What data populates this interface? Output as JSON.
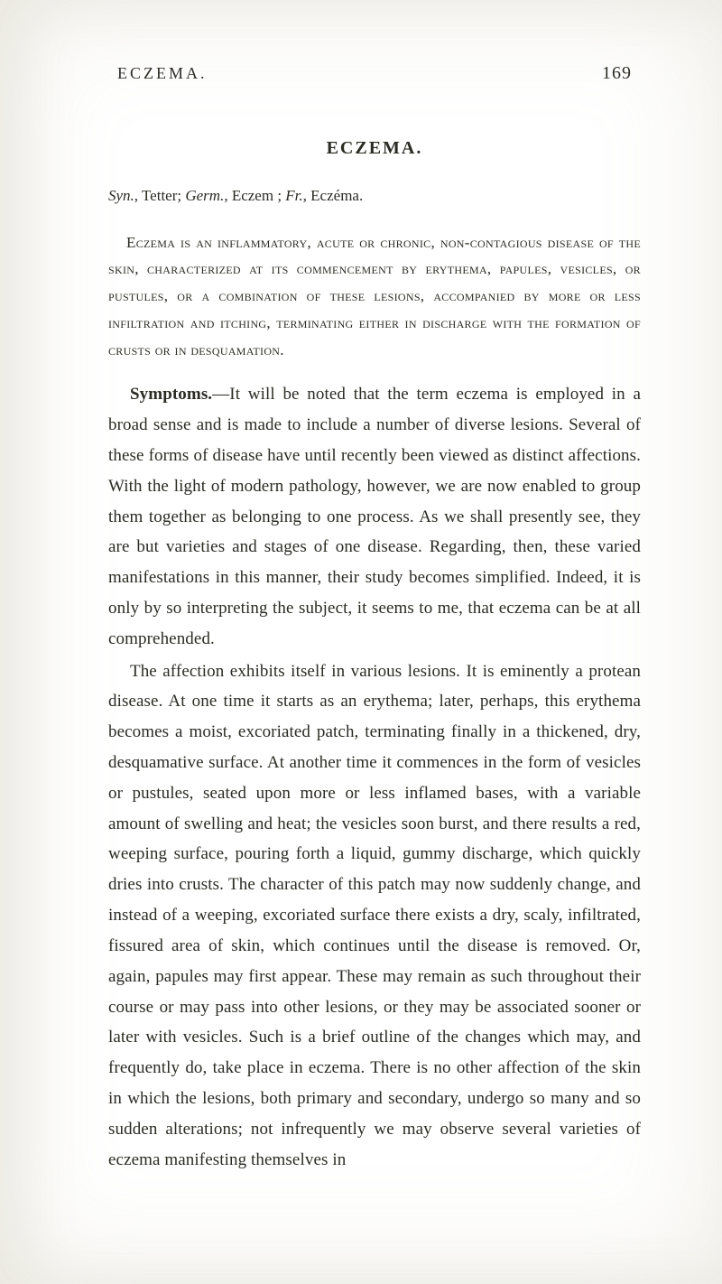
{
  "page": {
    "running_head": "ECZEMA.",
    "page_number": "169",
    "title": "ECZEMA.",
    "syn": {
      "prefix": "Syn.",
      "html": ", Tetter; <i>Germ.</i>, Eczem ; <i>Fr.</i>, Eczéma."
    },
    "definition_html": "<span class='lead'>E</span>czema is an inflammatory, acute or chronic, non-contagious disease of the skin, characterized at its commencement by erythema, papules, vesicles, or pustules, or a combination of these lesions, accompanied by more or less infiltration and itching, terminating either in discharge with the formation of crusts or in desquamation.",
    "paragraphs": [
      {
        "run_in": "Symptoms.",
        "text": "—It will be noted that the term eczema is employed in a broad sense and is made to include a number of diverse lesions. Several of these forms of disease have until recently been viewed as distinct affections. With the light of modern pathology, however, we are now enabled to group them together as belonging to one process. As we shall presently see, they are but varieties and stages of one disease. Regarding, then, these varied manifestations in this manner, their study becomes simplified. Indeed, it is only by so interpreting the subject, it seems to me, that eczema can be at all comprehended."
      },
      {
        "run_in": "",
        "text": "The affection exhibits itself in various lesions. It is eminently a protean disease. At one time it starts as an erythema; later, perhaps, this erythema becomes a moist, excoriated patch, terminating finally in a thickened, dry, desquamative surface. At another time it commences in the form of vesicles or pustules, seated upon more or less inflamed bases, with a variable amount of swelling and heat; the vesicles soon burst, and there results a red, weeping surface, pouring forth a liquid, gummy discharge, which quickly dries into crusts. The character of this patch may now suddenly change, and instead of a weeping, excoriated surface there exists a dry, scaly, infiltrated, fissured area of skin, which continues until the disease is removed. Or, again, papules may first appear. These may remain as such throughout their course or may pass into other lesions, or they may be associated sooner or later with vesicles. Such is a brief outline of the changes which may, and frequently do, take place in eczema. There is no other affection of the skin in which the lesions, both primary and secondary, undergo so many and so sudden alterations; not infrequently we may observe several varieties of eczema manifesting themselves in"
      }
    ]
  },
  "colors": {
    "background": "#ffffff",
    "text": "#2b2b24",
    "vignette": "rgba(180,170,140,0.18)"
  },
  "typography": {
    "body_font": "Times New Roman",
    "body_size_pt": 14,
    "title_size_pt": 15,
    "line_height": 1.78
  }
}
